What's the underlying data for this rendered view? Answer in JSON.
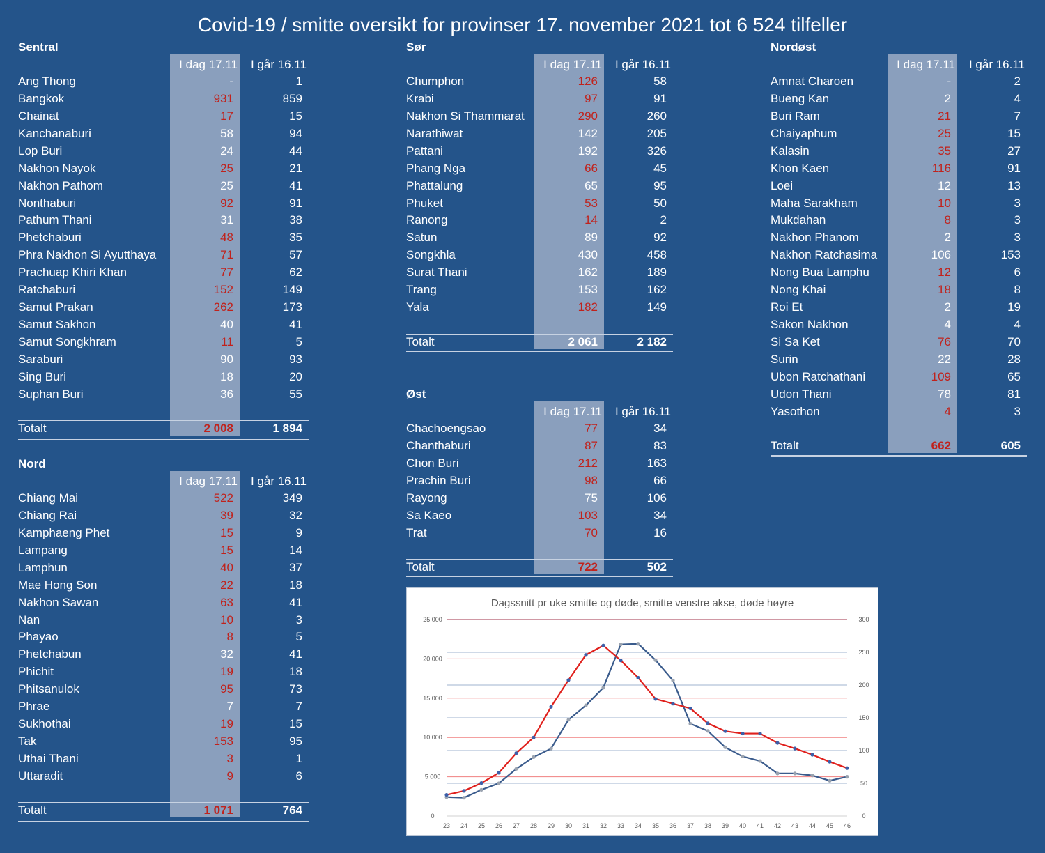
{
  "title": "Covid-19 / smitte oversikt for provinser 17. november 2021 tot 6 524 tilfeller",
  "col_today": "I dag 17.11",
  "col_yesterday": "I går 16.11",
  "total_label": "Totalt",
  "colors": {
    "background": "#24548a",
    "today_column": "#8a9fbd",
    "increase_red": "#c0221c"
  },
  "regions": [
    {
      "key": "sentral",
      "name": "Sentral",
      "rows": [
        {
          "name": "Ang Thong",
          "today": "-",
          "yesterday": "1",
          "up": false
        },
        {
          "name": "Bangkok",
          "today": "931",
          "yesterday": "859",
          "up": true
        },
        {
          "name": "Chainat",
          "today": "17",
          "yesterday": "15",
          "up": true
        },
        {
          "name": "Kanchanaburi",
          "today": "58",
          "yesterday": "94",
          "up": false
        },
        {
          "name": "Lop Buri",
          "today": "24",
          "yesterday": "44",
          "up": false
        },
        {
          "name": "Nakhon Nayok",
          "today": "25",
          "yesterday": "21",
          "up": true
        },
        {
          "name": "Nakhon Pathom",
          "today": "25",
          "yesterday": "41",
          "up": false
        },
        {
          "name": "Nonthaburi",
          "today": "92",
          "yesterday": "91",
          "up": true
        },
        {
          "name": "Pathum Thani",
          "today": "31",
          "yesterday": "38",
          "up": false
        },
        {
          "name": "Phetchaburi",
          "today": "48",
          "yesterday": "35",
          "up": true
        },
        {
          "name": "Phra Nakhon Si Ayutthaya",
          "today": "71",
          "yesterday": "57",
          "up": true
        },
        {
          "name": "Prachuap Khiri Khan",
          "today": "77",
          "yesterday": "62",
          "up": true
        },
        {
          "name": "Ratchaburi",
          "today": "152",
          "yesterday": "149",
          "up": true
        },
        {
          "name": "Samut Prakan",
          "today": "262",
          "yesterday": "173",
          "up": true
        },
        {
          "name": "Samut Sakhon",
          "today": "40",
          "yesterday": "41",
          "up": false
        },
        {
          "name": "Samut Songkhram",
          "today": "11",
          "yesterday": "5",
          "up": true
        },
        {
          "name": "Saraburi",
          "today": "90",
          "yesterday": "93",
          "up": false
        },
        {
          "name": "Sing Buri",
          "today": "18",
          "yesterday": "20",
          "up": false
        },
        {
          "name": "Suphan Buri",
          "today": "36",
          "yesterday": "55",
          "up": false
        }
      ],
      "total_today": "2 008",
      "total_yesterday": "1 894",
      "total_up": true
    },
    {
      "key": "nord",
      "name": "Nord",
      "rows": [
        {
          "name": "Chiang Mai",
          "today": "522",
          "yesterday": "349",
          "up": true
        },
        {
          "name": "Chiang Rai",
          "today": "39",
          "yesterday": "32",
          "up": true
        },
        {
          "name": "Kamphaeng Phet",
          "today": "15",
          "yesterday": "9",
          "up": true
        },
        {
          "name": "Lampang",
          "today": "15",
          "yesterday": "14",
          "up": true
        },
        {
          "name": "Lamphun",
          "today": "40",
          "yesterday": "37",
          "up": true
        },
        {
          "name": "Mae Hong Son",
          "today": "22",
          "yesterday": "18",
          "up": true
        },
        {
          "name": "Nakhon Sawan",
          "today": "63",
          "yesterday": "41",
          "up": true
        },
        {
          "name": "Nan",
          "today": "10",
          "yesterday": "3",
          "up": true
        },
        {
          "name": "Phayao",
          "today": "8",
          "yesterday": "5",
          "up": true
        },
        {
          "name": "Phetchabun",
          "today": "32",
          "yesterday": "41",
          "up": false
        },
        {
          "name": "Phichit",
          "today": "19",
          "yesterday": "18",
          "up": true
        },
        {
          "name": "Phitsanulok",
          "today": "95",
          "yesterday": "73",
          "up": true
        },
        {
          "name": "Phrae",
          "today": "7",
          "yesterday": "7",
          "up": false
        },
        {
          "name": "Sukhothai",
          "today": "19",
          "yesterday": "15",
          "up": true
        },
        {
          "name": "Tak",
          "today": "153",
          "yesterday": "95",
          "up": true
        },
        {
          "name": "Uthai Thani",
          "today": "3",
          "yesterday": "1",
          "up": true
        },
        {
          "name": "Uttaradit",
          "today": "9",
          "yesterday": "6",
          "up": true
        }
      ],
      "total_today": "1 071",
      "total_yesterday": "764",
      "total_up": true
    },
    {
      "key": "sor",
      "name": "Sør",
      "rows": [
        {
          "name": "Chumphon",
          "today": "126",
          "yesterday": "58",
          "up": true
        },
        {
          "name": "Krabi",
          "today": "97",
          "yesterday": "91",
          "up": true
        },
        {
          "name": "Nakhon Si Thammarat",
          "today": "290",
          "yesterday": "260",
          "up": true
        },
        {
          "name": "Narathiwat",
          "today": "142",
          "yesterday": "205",
          "up": false
        },
        {
          "name": "Pattani",
          "today": "192",
          "yesterday": "326",
          "up": false
        },
        {
          "name": "Phang Nga",
          "today": "66",
          "yesterday": "45",
          "up": true
        },
        {
          "name": "Phattalung",
          "today": "65",
          "yesterday": "95",
          "up": false
        },
        {
          "name": "Phuket",
          "today": "53",
          "yesterday": "50",
          "up": true
        },
        {
          "name": "Ranong",
          "today": "14",
          "yesterday": "2",
          "up": true
        },
        {
          "name": "Satun",
          "today": "89",
          "yesterday": "92",
          "up": false
        },
        {
          "name": "Songkhla",
          "today": "430",
          "yesterday": "458",
          "up": false
        },
        {
          "name": "Surat Thani",
          "today": "162",
          "yesterday": "189",
          "up": false
        },
        {
          "name": "Trang",
          "today": "153",
          "yesterday": "162",
          "up": false
        },
        {
          "name": "Yala",
          "today": "182",
          "yesterday": "149",
          "up": true
        }
      ],
      "total_today": "2 061",
      "total_yesterday": "2 182",
      "total_up": false
    },
    {
      "key": "ost",
      "name": "Øst",
      "rows": [
        {
          "name": "Chachoengsao",
          "today": "77",
          "yesterday": "34",
          "up": true
        },
        {
          "name": "Chanthaburi",
          "today": "87",
          "yesterday": "83",
          "up": true
        },
        {
          "name": "Chon Buri",
          "today": "212",
          "yesterday": "163",
          "up": true
        },
        {
          "name": "Prachin Buri",
          "today": "98",
          "yesterday": "66",
          "up": true
        },
        {
          "name": "Rayong",
          "today": "75",
          "yesterday": "106",
          "up": false
        },
        {
          "name": "Sa Kaeo",
          "today": "103",
          "yesterday": "34",
          "up": true
        },
        {
          "name": "Trat",
          "today": "70",
          "yesterday": "16",
          "up": true
        }
      ],
      "total_today": "722",
      "total_yesterday": "502",
      "total_up": true
    },
    {
      "key": "nordost",
      "name": "Nordøst",
      "rows": [
        {
          "name": "Amnat Charoen",
          "today": "-",
          "yesterday": "2",
          "up": false
        },
        {
          "name": "Bueng Kan",
          "today": "2",
          "yesterday": "4",
          "up": false
        },
        {
          "name": "Buri Ram",
          "today": "21",
          "yesterday": "7",
          "up": true
        },
        {
          "name": "Chaiyaphum",
          "today": "25",
          "yesterday": "15",
          "up": true
        },
        {
          "name": "Kalasin",
          "today": "35",
          "yesterday": "27",
          "up": true
        },
        {
          "name": "Khon Kaen",
          "today": "116",
          "yesterday": "91",
          "up": true
        },
        {
          "name": "Loei",
          "today": "12",
          "yesterday": "13",
          "up": false
        },
        {
          "name": "Maha Sarakham",
          "today": "10",
          "yesterday": "3",
          "up": true
        },
        {
          "name": "Mukdahan",
          "today": "8",
          "yesterday": "3",
          "up": true
        },
        {
          "name": "Nakhon Phanom",
          "today": "2",
          "yesterday": "3",
          "up": false
        },
        {
          "name": "Nakhon Ratchasima",
          "today": "106",
          "yesterday": "153",
          "up": false
        },
        {
          "name": "Nong Bua Lamphu",
          "today": "12",
          "yesterday": "6",
          "up": true
        },
        {
          "name": "Nong Khai",
          "today": "18",
          "yesterday": "8",
          "up": true
        },
        {
          "name": "Roi Et",
          "today": "2",
          "yesterday": "19",
          "up": false
        },
        {
          "name": "Sakon Nakhon",
          "today": "4",
          "yesterday": "4",
          "up": false
        },
        {
          "name": "Si Sa Ket",
          "today": "76",
          "yesterday": "70",
          "up": true
        },
        {
          "name": "Surin",
          "today": "22",
          "yesterday": "28",
          "up": false
        },
        {
          "name": "Ubon Ratchathani",
          "today": "109",
          "yesterday": "65",
          "up": true
        },
        {
          "name": "Udon Thani",
          "today": "78",
          "yesterday": "81",
          "up": false
        },
        {
          "name": "Yasothon",
          "today": "4",
          "yesterday": "3",
          "up": true
        }
      ],
      "total_today": "662",
      "total_yesterday": "605",
      "total_up": true
    }
  ],
  "chart_data": {
    "type": "line",
    "title": "Dagssnitt pr uke smitte og døde, smitte venstre akse, døde høyre",
    "x": [
      23,
      24,
      25,
      26,
      27,
      28,
      29,
      30,
      31,
      32,
      33,
      34,
      35,
      36,
      37,
      38,
      39,
      40,
      41,
      42,
      43,
      44,
      45,
      46
    ],
    "y_left_ticks": [
      "0",
      "5 000",
      "10 000",
      "15 000",
      "20 000",
      "25 000"
    ],
    "y_right_ticks": [
      "0",
      "50",
      "100",
      "150",
      "200",
      "250",
      "300"
    ],
    "ylim_left": [
      0,
      25000
    ],
    "ylim_right": [
      0,
      300
    ],
    "grid": true,
    "series": [
      {
        "axis": "left",
        "color": "#e0201c",
        "marker_color": "#3d5fa8",
        "values": [
          2700,
          3200,
          4200,
          5500,
          8000,
          10000,
          13900,
          17300,
          20500,
          21700,
          19800,
          17600,
          14900,
          14300,
          13700,
          11800,
          10800,
          10500,
          10500,
          9300,
          8600,
          7800,
          6900,
          6100
        ]
      },
      {
        "axis": "right",
        "color": "#3a5b8c",
        "marker_color": "#9aa3b0",
        "values": [
          29,
          28,
          40,
          50,
          72,
          90,
          103,
          147,
          169,
          196,
          262,
          263,
          238,
          207,
          141,
          130,
          105,
          91,
          84,
          65,
          65,
          62,
          54,
          60
        ]
      }
    ]
  }
}
